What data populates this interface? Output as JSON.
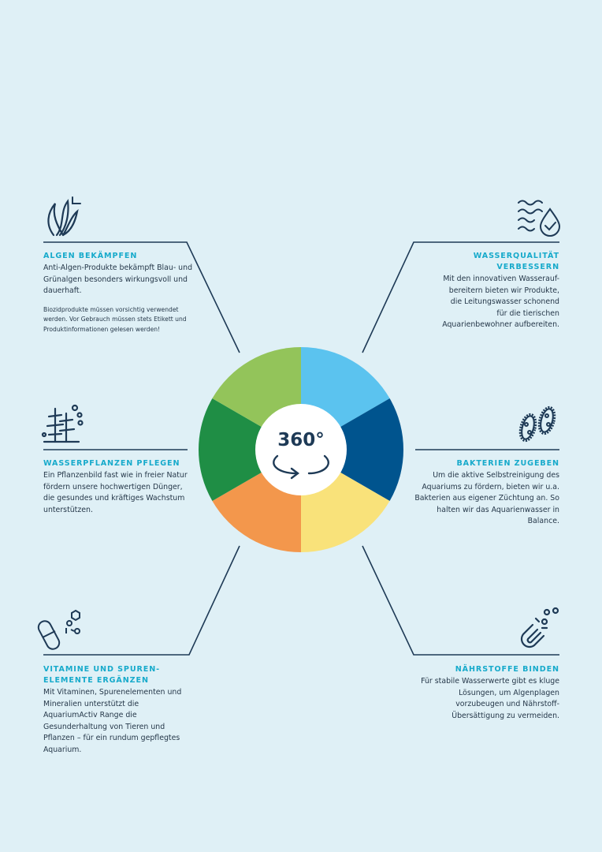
{
  "center": {
    "label": "360°",
    "icon": "rotate-arrows-icon"
  },
  "wheel_colors": [
    "#5bc3ef",
    "#00548e",
    "#f9e27a",
    "#f3974c",
    "#1f8e45",
    "#93c45a"
  ],
  "colors": {
    "background": "#dff0f6",
    "heading": "#17aacb",
    "lines": "#1e3a56",
    "text": "#26384a"
  },
  "sections": [
    {
      "icon": "algae-icon",
      "title": "ALGEN BEKÄMPFEN",
      "text": "Anti-Algen-Produkte bekämpft Blau- und Grünalgen besonders wirkungsvoll und dauerhaft.",
      "note": "Biozidprodukte müssen vorsichtig verwendet werden. Vor Gebrauch müssen stets Etikett und Produktinformationen gelesen werden!"
    },
    {
      "icon": "water-drop-check-icon",
      "title": "WASSERQUALITÄT VERBESSERN",
      "text": "Mit den innovativen Wasserauf-bereitern bieten wir Produkte, die Leitungswasser schonend für die tierischen Aquarienbewohner aufbereiten."
    },
    {
      "icon": "water-plant-icon",
      "title": "WASSERPFLANZEN PFLEGEN",
      "text": "Ein Pflanzenbild fast wie in freier Natur fördern unsere hochwertigen Dünger, die gesundes und kräftiges Wachstum unterstützen."
    },
    {
      "icon": "bacteria-icon",
      "title": "BAKTERIEN ZUGEBEN",
      "text": "Um die aktive Selbstreinigung des Aquariums zu fördern, bieten wir u.a. Bakterien aus eigener Züchtung an. So halten wir das Aquarienwasser in Balance."
    },
    {
      "icon": "capsule-molecule-icon",
      "title": "VITAMINE UND SPUREN-ELEMENTE ERGÄNZEN",
      "text": "Mit Vitaminen, Spurenelementen und Mineralien unterstützt die AquariumActiv Range die Gesunderhaltung von Tieren und Pflanzen – für ein rundum gepflegtes Aquarium."
    },
    {
      "icon": "magnet-icon",
      "title": "NÄHRSTOFFE BINDEN",
      "text": "Für stabile Wasserwerte gibt es kluge Lösungen, um Algenplagen vorzubeugen und Nährstoff-Übersättigung zu vermeiden."
    }
  ]
}
